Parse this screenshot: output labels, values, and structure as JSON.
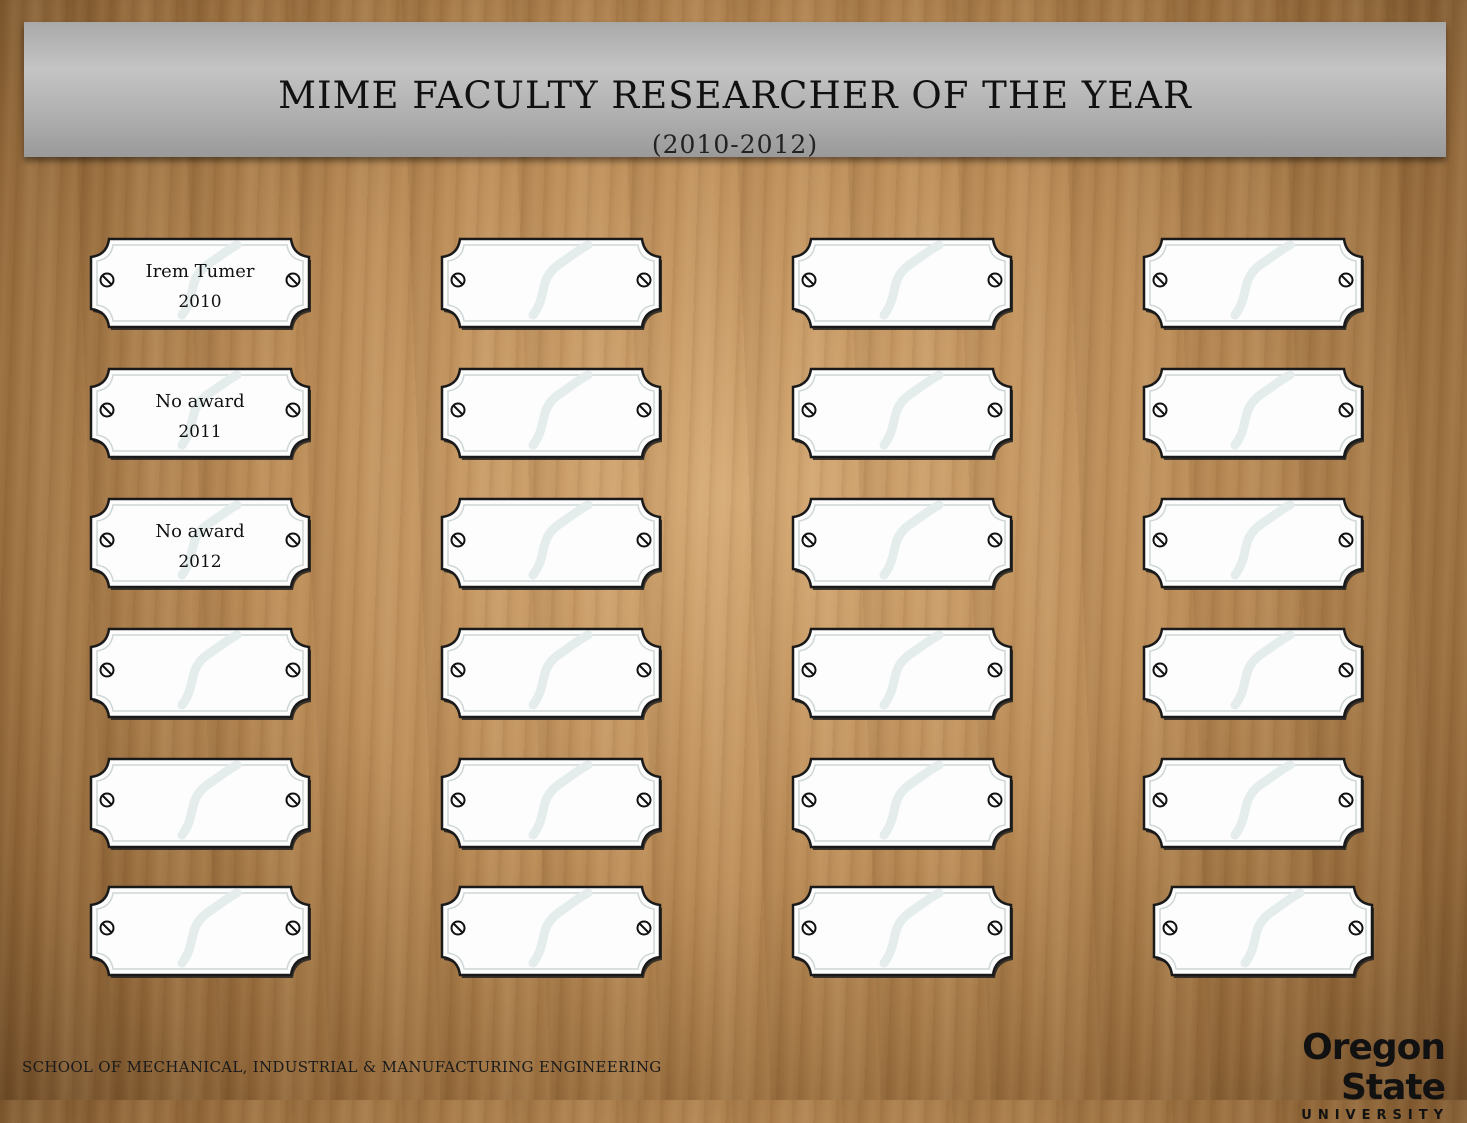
{
  "header": {
    "title": "MIME FACULTY RESEARCHER OF THE YEAR",
    "subtitle": "(2010-2012)"
  },
  "plaques": [
    {
      "name": "Irem Tumer",
      "year": "2010"
    },
    {
      "name": "",
      "year": ""
    },
    {
      "name": "",
      "year": ""
    },
    {
      "name": "",
      "year": ""
    },
    {
      "name": "No award",
      "year": "2011"
    },
    {
      "name": "",
      "year": ""
    },
    {
      "name": "",
      "year": ""
    },
    {
      "name": "",
      "year": ""
    },
    {
      "name": "No award",
      "year": "2012"
    },
    {
      "name": "",
      "year": ""
    },
    {
      "name": "",
      "year": ""
    },
    {
      "name": "",
      "year": ""
    },
    {
      "name": "",
      "year": ""
    },
    {
      "name": "",
      "year": ""
    },
    {
      "name": "",
      "year": ""
    },
    {
      "name": "",
      "year": ""
    },
    {
      "name": "",
      "year": ""
    },
    {
      "name": "",
      "year": ""
    },
    {
      "name": "",
      "year": ""
    },
    {
      "name": "",
      "year": ""
    },
    {
      "name": "",
      "year": ""
    },
    {
      "name": "",
      "year": ""
    },
    {
      "name": "",
      "year": ""
    },
    {
      "name": "",
      "year": ""
    }
  ],
  "footer": {
    "school": "SCHOOL OF MECHANICAL, INDUSTRIAL & MANUFACTURING ENGINEERING",
    "logo_main": "Oregon State",
    "logo_sub": "UNIVERSITY"
  },
  "colors": {
    "wood": "#b98a55",
    "header_metal": "#b2b2b2",
    "plaque": "#ffffff"
  }
}
